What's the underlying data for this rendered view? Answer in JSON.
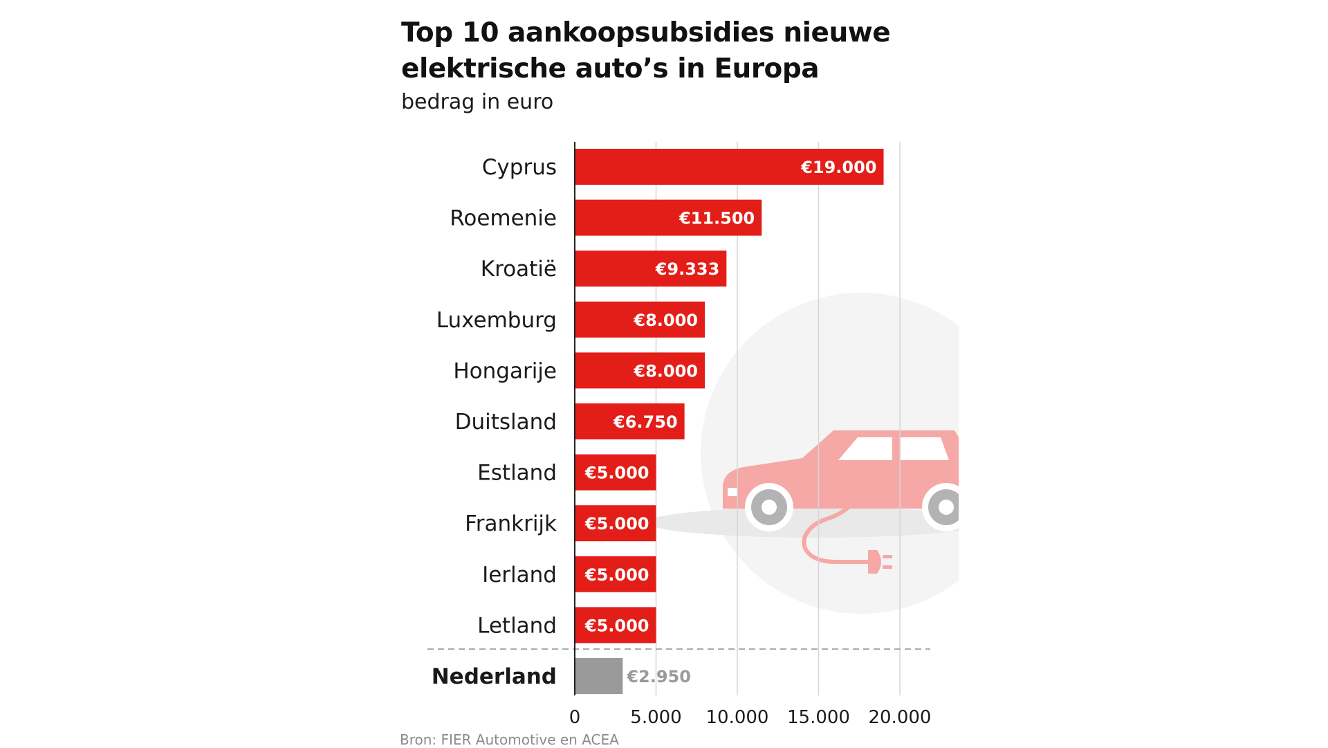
{
  "chart_data": {
    "type": "bar",
    "orientation": "horizontal",
    "title": "Top 10 aankoopsubsidies nieuwe elektrische auto’s in Europa",
    "subtitle": "bedrag in euro",
    "source": "Bron: FIER Automotive en ACEA",
    "categories": [
      "Cyprus",
      "Roemenie",
      "Kroatië",
      "Luxemburg",
      "Hongarije",
      "Duitsland",
      "Estland",
      "Frankrijk",
      "Ierland",
      "Letland",
      "Nederland"
    ],
    "values": [
      19000,
      11500,
      9333,
      8000,
      8000,
      6750,
      5000,
      5000,
      5000,
      5000,
      2950
    ],
    "value_labels": [
      "€19.000",
      "€11.500",
      "€9.333",
      "€8.000",
      "€8.000",
      "€6.750",
      "€5.000",
      "€5.000",
      "€5.000",
      "€5.000",
      "€2.950"
    ],
    "highlight_index": 10,
    "xticks": [
      0,
      5000,
      10000,
      15000,
      20000
    ],
    "xtick_labels": [
      "0",
      "5.000",
      "10.000",
      "15.000",
      "20.000"
    ],
    "xlim": [
      0,
      22000
    ],
    "grid": true,
    "colors": {
      "bar": "#e31e18",
      "highlight_bar": "#9a9a9a",
      "highlight_label": "#9a9a9a",
      "decoration": "#f5a8a6"
    },
    "decoration_icon": "electric-car-with-plug-icon"
  }
}
